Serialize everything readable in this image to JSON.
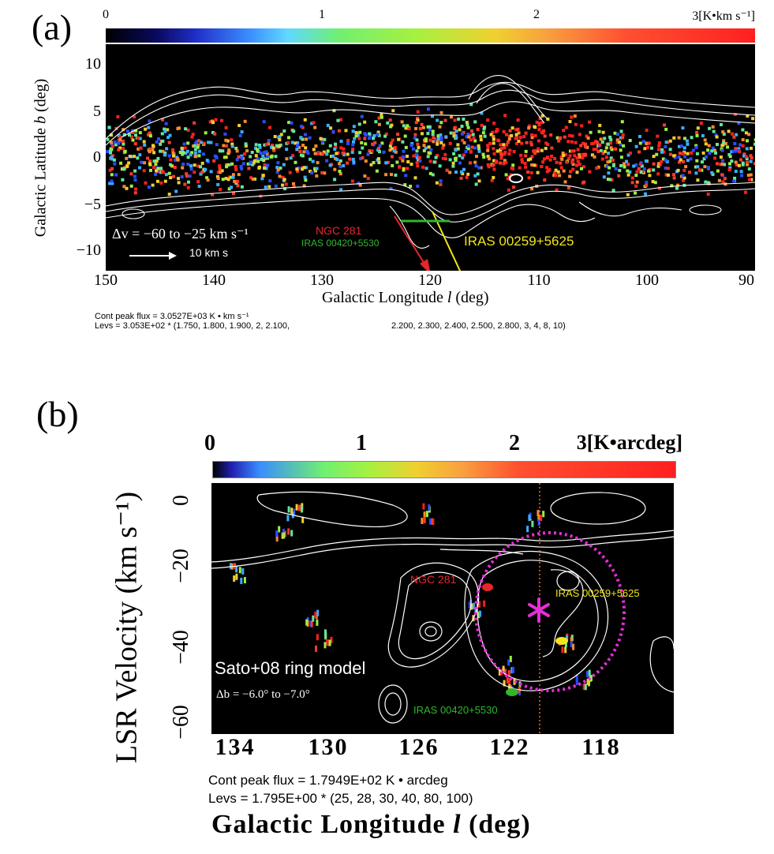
{
  "panel_a": {
    "letter": "(a)",
    "colorbar": {
      "ticks": [
        "0",
        "1",
        "2"
      ],
      "max_label": "3[K•km s⁻¹]"
    },
    "xlabel_prefix": "Galactic Longitude ",
    "xlabel_var": "l",
    "xlabel_suffix": " (deg)",
    "ylabel_prefix": "Galactic Latitude ",
    "ylabel_var": "b",
    "ylabel_suffix": " (deg)",
    "xticks": [
      "150",
      "140",
      "130",
      "120",
      "110",
      "100",
      "90"
    ],
    "yticks": [
      "10",
      "5",
      "0",
      "−5",
      "−10"
    ],
    "annotations": {
      "dv": "Δv = −60 to −25  km s⁻¹",
      "scale_label": "10 km s",
      "ngc281": "NGC 281",
      "iras00420": "IRAS 00420+5530",
      "iras00259": "IRAS 00259+5625"
    },
    "footer_line1": "Cont peak flux =  3.0527E+03 K • km s⁻¹",
    "footer_line2": "Levs = 3.053E+02 * (1.750, 1.800, 1.900, 2, 2.100,",
    "footer_line2b": "2.200, 2.300, 2.400, 2.500, 2.800, 3, 4, 8, 10)"
  },
  "panel_b": {
    "letter": "(b)",
    "colorbar": {
      "ticks": [
        "0",
        "1",
        "2"
      ],
      "max_label": "3[K•arcdeg]"
    },
    "ylabel": "LSR Velocity (km s⁻¹)",
    "xlabel_prefix": "Galactic Longitude ",
    "xlabel_var": "l",
    "xlabel_suffix": " (deg)",
    "xticks": [
      "134",
      "130",
      "126",
      "122",
      "118"
    ],
    "yticks": [
      "0",
      "−20",
      "−40",
      "−60"
    ],
    "annotations": {
      "ngc281": "NGC 281",
      "iras00259": "IRAS 00259+5625",
      "iras00420": "IRAS 00420+5530",
      "model": "Sato+08 ring model",
      "db": "Δb = −6.0° to −7.0°"
    },
    "footer_line1": "Cont peak flux =  1.7949E+02 K •  arcdeg",
    "footer_line2": "Levs = 1.795E+00 * (25, 28, 30, 40, 80, 100)"
  },
  "colors": {
    "background": "#000000",
    "contour": "#ffffff",
    "ngc281": "#e8262a",
    "iras00420": "#2fb82f",
    "iras00259": "#f2e61a",
    "ring": "#e62ed6"
  },
  "chart_data": [
    {
      "type": "heatmap",
      "title": "",
      "xlabel": "Galactic Longitude l (deg)",
      "ylabel": "Galactic Latitude b (deg)",
      "xlim": [
        150,
        90
      ],
      "ylim": [
        -13,
        13
      ],
      "colorbar_range": [
        0,
        3
      ],
      "colorbar_unit": "K km s⁻¹",
      "velocity_range_km_s": [
        -60,
        -25
      ],
      "cont_peak_flux": 3052.7,
      "contour_base": 305.3,
      "contour_levels": [
        1.75,
        1.8,
        1.9,
        2,
        2.1,
        2.2,
        2.3,
        2.4,
        2.5,
        2.8,
        3,
        4,
        8,
        10
      ],
      "sources": [
        {
          "name": "NGC 281",
          "l": 123.1,
          "b": -6.1
        },
        {
          "name": "IRAS 00420+5530",
          "l": 122.0,
          "b": -7.3
        },
        {
          "name": "IRAS 00259+5625",
          "l": 119.6,
          "b": -6.3
        }
      ]
    },
    {
      "type": "heatmap",
      "title": "",
      "xlabel": "Galactic Longitude l (deg)",
      "ylabel": "LSR Velocity (km s⁻¹)",
      "xlim": [
        135,
        115
      ],
      "ylim": [
        -60,
        5
      ],
      "colorbar_range": [
        0,
        3
      ],
      "colorbar_unit": "K arcdeg",
      "latitude_range_deg": [
        -6.0,
        -7.0
      ],
      "cont_peak_flux": 179.49,
      "contour_base": 1.795,
      "contour_levels": [
        25,
        28,
        30,
        40,
        80,
        100
      ],
      "sources": [
        {
          "name": "NGC 281",
          "l": 123.1,
          "v": -31
        },
        {
          "name": "IRAS 00259+5625",
          "l": 119.6,
          "v": -38
        },
        {
          "name": "IRAS 00420+5530",
          "l": 122.0,
          "v": -51
        }
      ],
      "ring_model": {
        "name": "Sato+08 ring model",
        "center_l": 120.4,
        "center_v": -35
      }
    }
  ]
}
